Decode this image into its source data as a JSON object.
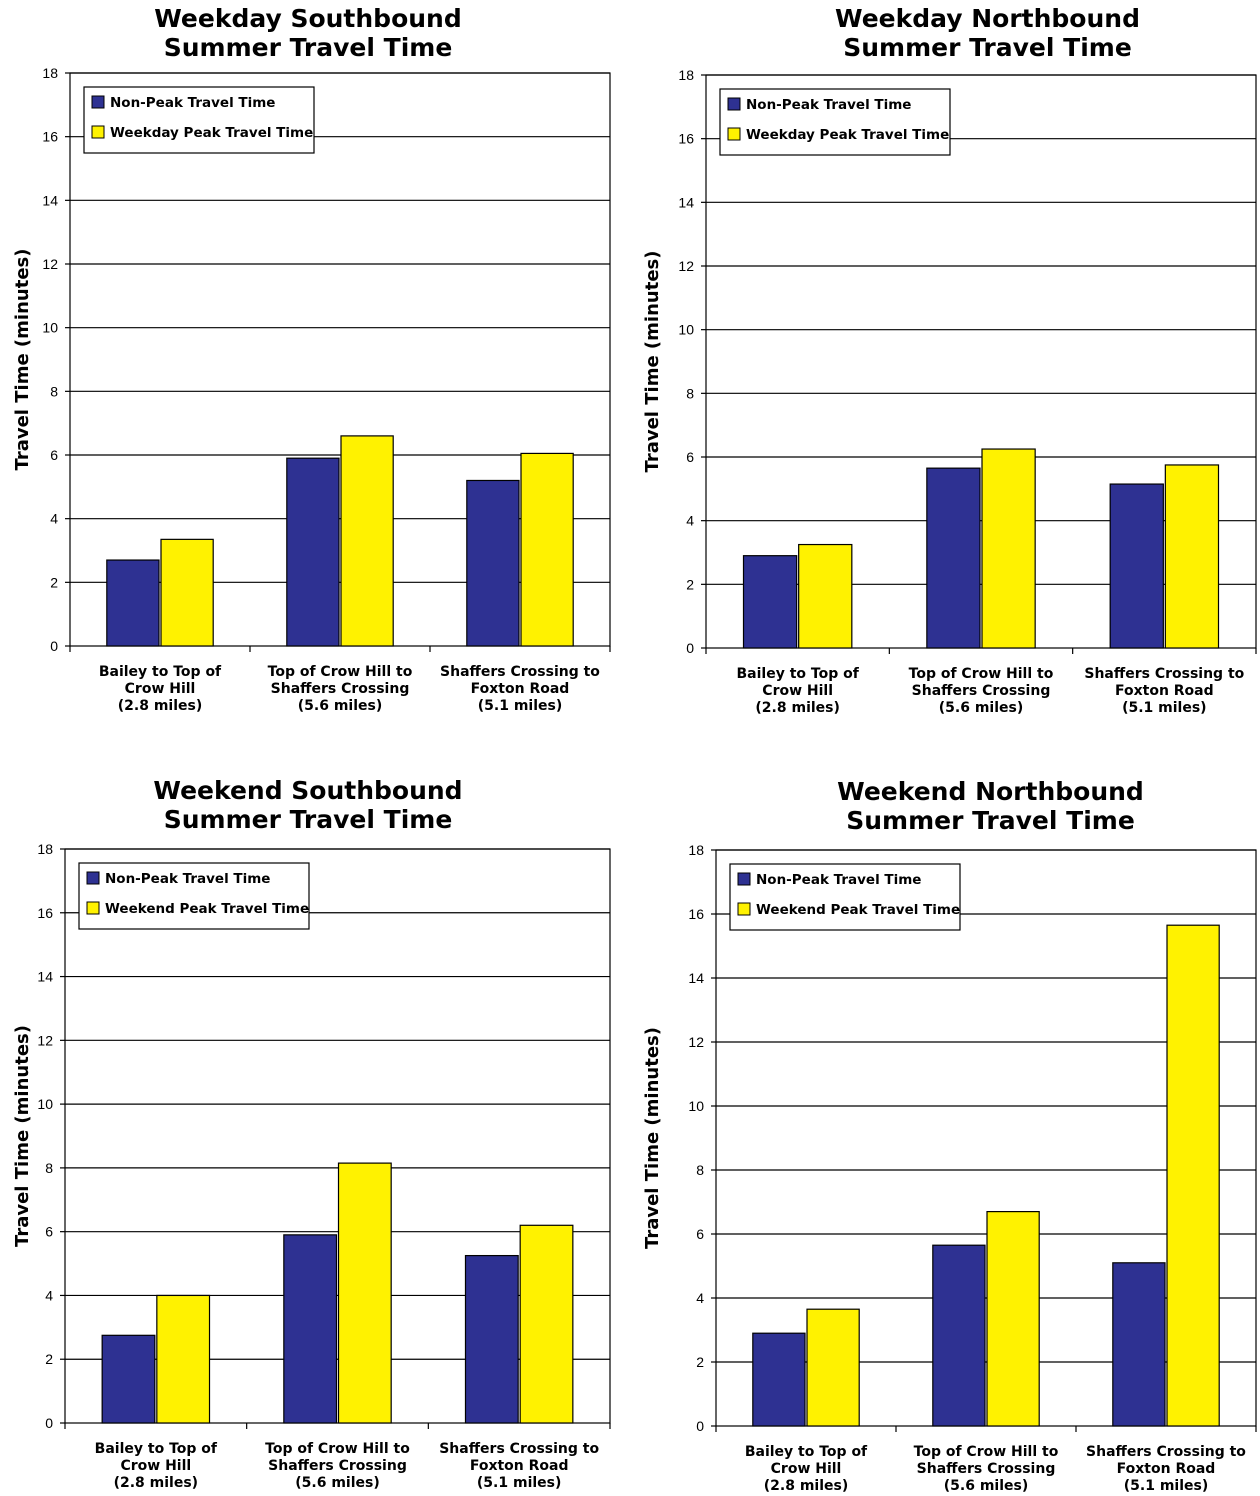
{
  "colors": {
    "nonpeak": "#2e3192",
    "peak": "#fff200",
    "gridline": "#000000",
    "outline": "#000000"
  },
  "chart_data": [
    {
      "type": "bar",
      "title": [
        "Weekday Southbound",
        "Summer Travel Time"
      ],
      "ylabel": "Travel Time (minutes)",
      "xlabel": "",
      "ylim": [
        0,
        18
      ],
      "yticks": [
        "0",
        "2",
        "4",
        "6",
        "8",
        "10",
        "12",
        "14",
        "16",
        "18"
      ],
      "grid": true,
      "legend": "top-left",
      "categories": [
        [
          "Bailey to Top of",
          "Crow Hill",
          "(2.8 miles)"
        ],
        [
          "Top of Crow Hill to",
          "Shaffers Crossing",
          "(5.6 miles)"
        ],
        [
          "Shaffers Crossing to",
          "Foxton Road",
          "(5.1 miles)"
        ]
      ],
      "series": [
        {
          "name": "Non-Peak Travel Time",
          "values": [
            2.7,
            5.9,
            5.2
          ]
        },
        {
          "name": "Weekday Peak Travel Time",
          "values": [
            3.35,
            6.6,
            6.05
          ]
        }
      ]
    },
    {
      "type": "bar",
      "title": [
        "Weekday Northbound",
        "Summer Travel Time"
      ],
      "ylabel": "Travel Time (minutes)",
      "xlabel": "",
      "ylim": [
        0,
        18
      ],
      "yticks": [
        "0",
        "2",
        "4",
        "6",
        "8",
        "10",
        "12",
        "14",
        "16",
        "18"
      ],
      "grid": true,
      "legend": "top-left",
      "categories": [
        [
          "Bailey to Top of",
          "Crow Hill",
          "(2.8 miles)"
        ],
        [
          "Top of Crow Hill to",
          "Shaffers Crossing",
          "(5.6 miles)"
        ],
        [
          "Shaffers Crossing to",
          "Foxton Road",
          "(5.1 miles)"
        ]
      ],
      "series": [
        {
          "name": "Non-Peak Travel Time",
          "values": [
            2.9,
            5.65,
            5.15
          ]
        },
        {
          "name": "Weekday Peak Travel Time",
          "values": [
            3.25,
            6.25,
            5.75
          ]
        }
      ]
    },
    {
      "type": "bar",
      "title": [
        "Weekend Southbound",
        "Summer Travel Time"
      ],
      "ylabel": "Travel Time (minutes)",
      "xlabel": "",
      "ylim": [
        0,
        18
      ],
      "yticks": [
        "0",
        "2",
        "4",
        "6",
        "8",
        "10",
        "12",
        "14",
        "16",
        "18"
      ],
      "grid": true,
      "legend": "top-left",
      "categories": [
        [
          "Bailey to Top of",
          "Crow Hill",
          "(2.8 miles)"
        ],
        [
          "Top of Crow Hill to",
          "Shaffers Crossing",
          "(5.6 miles)"
        ],
        [
          "Shaffers Crossing to",
          "Foxton Road",
          "(5.1 miles)"
        ]
      ],
      "series": [
        {
          "name": "Non-Peak Travel Time",
          "values": [
            2.75,
            5.9,
            5.25
          ]
        },
        {
          "name": "Weekend Peak Travel Time",
          "values": [
            4.0,
            8.15,
            6.2
          ]
        }
      ]
    },
    {
      "type": "bar",
      "title": [
        "Weekend Northbound",
        "Summer Travel Time"
      ],
      "ylabel": "Travel Time (minutes)",
      "xlabel": "",
      "ylim": [
        0,
        18
      ],
      "yticks": [
        "0",
        "2",
        "4",
        "6",
        "8",
        "10",
        "12",
        "14",
        "16",
        "18"
      ],
      "grid": true,
      "legend": "top-left",
      "categories": [
        [
          "Bailey to Top of",
          "Crow Hill",
          "(2.8 miles)"
        ],
        [
          "Top of Crow Hill to",
          "Shaffers Crossing",
          "(5.6 miles)"
        ],
        [
          "Shaffers Crossing to",
          "Foxton Road",
          "(5.1 miles)"
        ]
      ],
      "series": [
        {
          "name": "Non-Peak Travel Time",
          "values": [
            2.9,
            5.65,
            5.1
          ]
        },
        {
          "name": "Weekend Peak Travel Time",
          "values": [
            3.65,
            6.7,
            15.65
          ]
        }
      ]
    }
  ]
}
